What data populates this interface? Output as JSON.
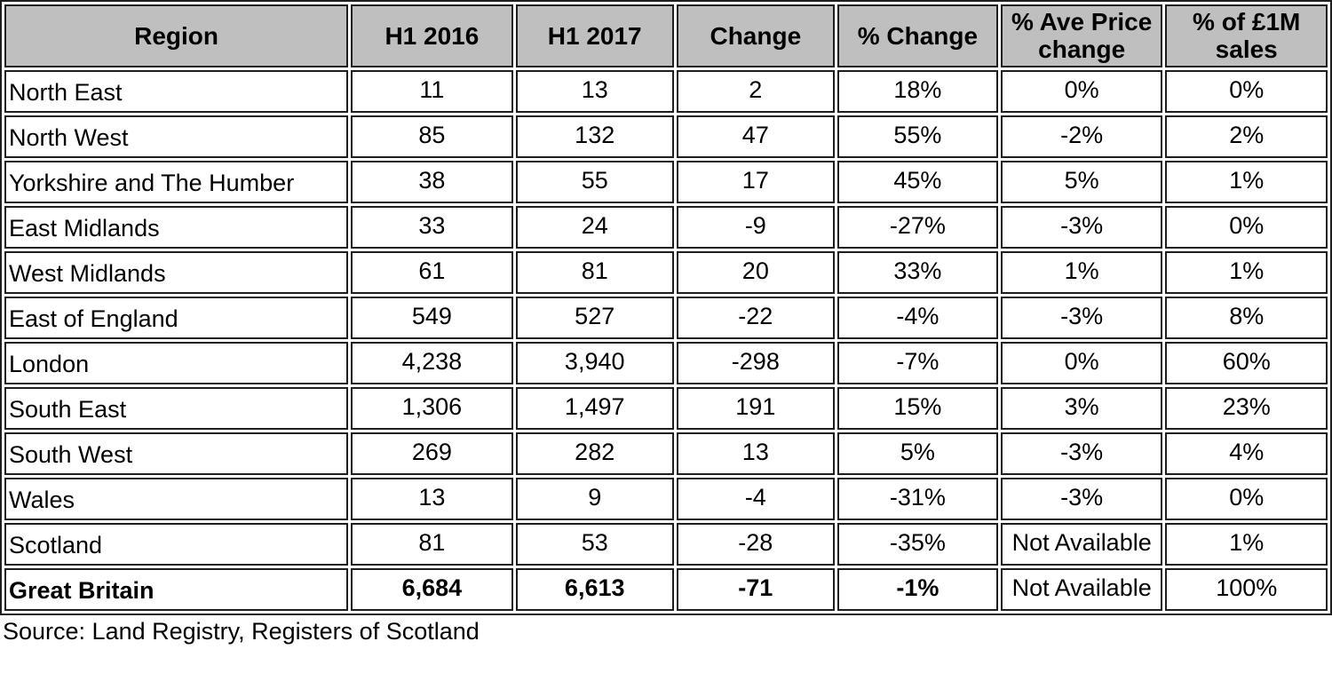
{
  "table": {
    "columns": [
      {
        "label": "Region"
      },
      {
        "label": "H1 2016"
      },
      {
        "label": "H1 2017"
      },
      {
        "label": "Change"
      },
      {
        "label": "% Change"
      },
      {
        "label": "% Ave Price\nchange"
      },
      {
        "label": "% of £1M\nsales"
      }
    ],
    "column_widths_pct": [
      26.3,
      12.4,
      12.1,
      12.1,
      12.3,
      12.4,
      12.4
    ],
    "rows": [
      {
        "region": "North East",
        "values": [
          "11",
          "13",
          "2",
          "18%",
          "0%",
          "0%"
        ],
        "bold": false
      },
      {
        "region": "North West",
        "values": [
          "85",
          "132",
          "47",
          "55%",
          "-2%",
          "2%"
        ],
        "bold": false
      },
      {
        "region": "Yorkshire and The Humber",
        "values": [
          "38",
          "55",
          "17",
          "45%",
          "5%",
          "1%"
        ],
        "bold": false
      },
      {
        "region": "East Midlands",
        "values": [
          "33",
          "24",
          "-9",
          "-27%",
          "-3%",
          "0%"
        ],
        "bold": false
      },
      {
        "region": "West Midlands",
        "values": [
          "61",
          "81",
          "20",
          "33%",
          "1%",
          "1%"
        ],
        "bold": false
      },
      {
        "region": "East of England",
        "values": [
          "549",
          "527",
          "-22",
          "-4%",
          "-3%",
          "8%"
        ],
        "bold": false
      },
      {
        "region": "London",
        "values": [
          "4,238",
          "3,940",
          "-298",
          "-7%",
          "0%",
          "60%"
        ],
        "bold": false
      },
      {
        "region": "South East",
        "values": [
          "1,306",
          "1,497",
          "191",
          "15%",
          "3%",
          "23%"
        ],
        "bold": false
      },
      {
        "region": "South West",
        "values": [
          "269",
          "282",
          "13",
          "5%",
          "-3%",
          "4%"
        ],
        "bold": false
      },
      {
        "region": "Wales",
        "values": [
          "13",
          "9",
          "-4",
          "-31%",
          "-3%",
          "0%"
        ],
        "bold": false
      },
      {
        "region": "Scotland",
        "values": [
          "81",
          "53",
          "-28",
          "-35%",
          "Not Available",
          "1%"
        ],
        "bold": false
      },
      {
        "region": "Great Britain",
        "values": [
          "6,684",
          "6,613",
          "-71",
          "-1%",
          "Not Available",
          "100%"
        ],
        "bold": true,
        "bold_value_count": 4
      }
    ]
  },
  "source": "Source: Land Registry, Registers of Scotland",
  "colors": {
    "header_bg": "#bfbfbf",
    "border": "#1e1e1e",
    "text": "#000000",
    "background": "#ffffff"
  }
}
